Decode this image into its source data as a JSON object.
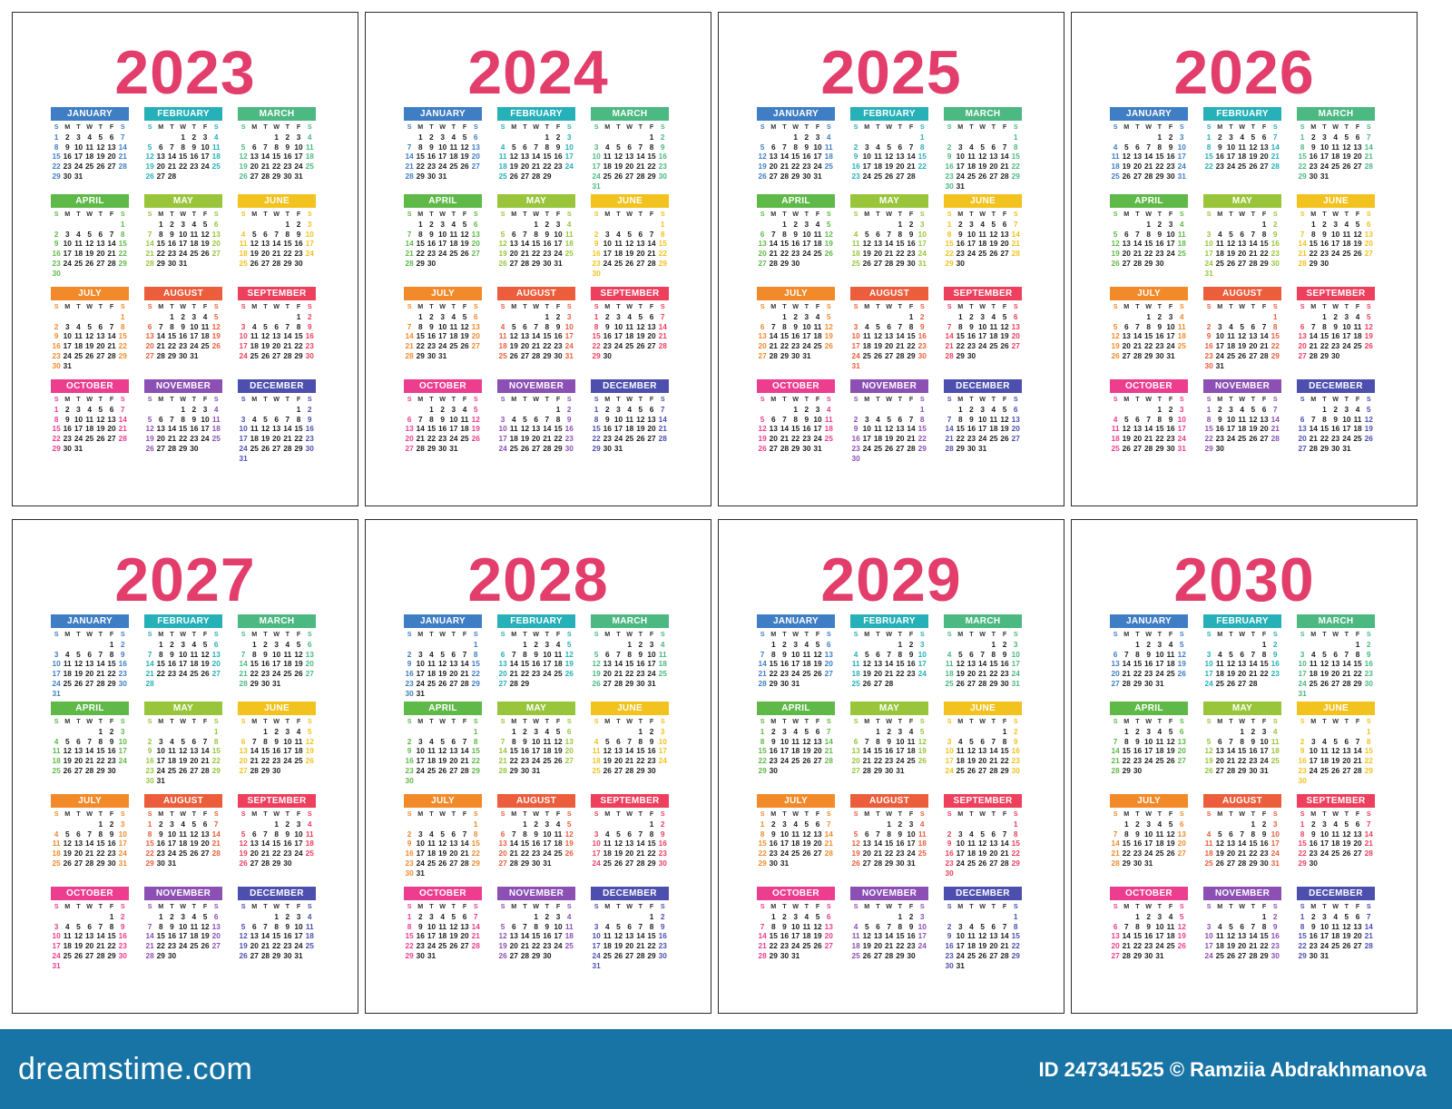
{
  "years": [
    "2023",
    "2024",
    "2025",
    "2026",
    "2027",
    "2028",
    "2029",
    "2030"
  ],
  "months": [
    {
      "name": "JANUARY",
      "color": "#3f7ec4"
    },
    {
      "name": "FEBRUARY",
      "color": "#26b0b8"
    },
    {
      "name": "MARCH",
      "color": "#4cb882"
    },
    {
      "name": "APRIL",
      "color": "#5fb948"
    },
    {
      "name": "MAY",
      "color": "#98c53a"
    },
    {
      "name": "JUNE",
      "color": "#f2c21f"
    },
    {
      "name": "JULY",
      "color": "#f28a2a"
    },
    {
      "name": "AUGUST",
      "color": "#ec5d3b"
    },
    {
      "name": "SEPTEMBER",
      "color": "#ee3f5d"
    },
    {
      "name": "OCTOBER",
      "color": "#ec3d8f"
    },
    {
      "name": "NOVEMBER",
      "color": "#8c4fb4"
    },
    {
      "name": "DECEMBER",
      "color": "#4d4fae"
    }
  ],
  "weekday_headers": [
    "S",
    "M",
    "T",
    "W",
    "T",
    "F",
    "S"
  ],
  "footer": {
    "brand": "dreamstime.com",
    "credit": "ID 247341525 © Ramziia Abdrakhmanova"
  }
}
